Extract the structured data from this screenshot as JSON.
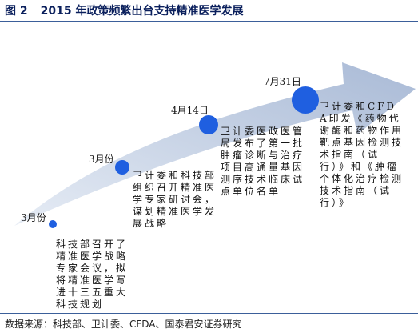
{
  "header": {
    "figure_number": "图 2",
    "title": "2015 年政策频繁出台支持精准医学发展"
  },
  "colors": {
    "arrow_fill_dark": "#a9bad6",
    "arrow_fill_light": "#e6ecf5",
    "milestone_dot": "#1f5fe0",
    "title_text": "#0a1f5c"
  },
  "milestones": [
    {
      "date": "3月份",
      "text": "科技部召开了精准医学战略专家会议，拟将精准医学写进十三五重大科技规划"
    },
    {
      "date": "3月份",
      "text": "卫计委和科技部组织召开精准医学专家研讨会，谋划精准医学发展战略"
    },
    {
      "date": "4月14日",
      "text": "卫计委医政医管局发布了第一批肿瘤诊断与治疗项目高通量基因测序技术临床试点单位名单"
    },
    {
      "date": "7月31日",
      "text": "卫计委和CFDA印发《药物代谢酶和药物作用靶点基因检测技术指南（试行）》和《肿瘤个体化治疗检测技术指南（试行）》"
    }
  ],
  "source": "数据来源：科技部、卫计委、CFDA、国泰君安证券研究"
}
